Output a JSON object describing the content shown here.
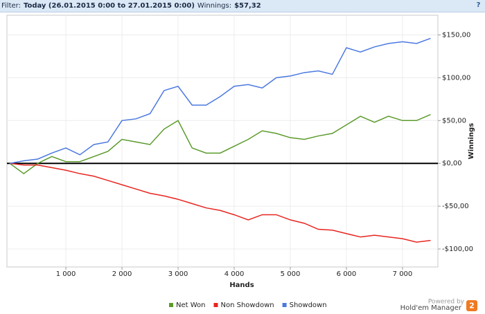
{
  "header": {
    "filter_label": "Filter:",
    "filter": "Today (26.01.2015 0:00 to 27.01.2015 0:00)",
    "winnings_label": "Winnings:",
    "winnings": "$57,32",
    "help": "?"
  },
  "branding": {
    "powered_by": "Powered by",
    "product": "Hold'em Manager",
    "badge": "2"
  },
  "chart_data": {
    "type": "line",
    "x_label": "Hands",
    "y_label": "Winnings",
    "x": [
      0,
      250,
      500,
      750,
      1000,
      1250,
      1500,
      1750,
      2000,
      2250,
      2500,
      2750,
      3000,
      3250,
      3500,
      3750,
      4000,
      4250,
      4500,
      4750,
      5000,
      5250,
      5500,
      5750,
      6000,
      6250,
      6500,
      6750,
      7000,
      7250,
      7500
    ],
    "series": [
      {
        "name": "Net Won",
        "color": "#5a9a2a",
        "values": [
          0,
          -12,
          0,
          8,
          2,
          2,
          8,
          14,
          28,
          25,
          22,
          40,
          50,
          18,
          12,
          12,
          20,
          28,
          38,
          35,
          30,
          28,
          32,
          35,
          45,
          55,
          48,
          55,
          50,
          50,
          57
        ]
      },
      {
        "name": "Non Showdown",
        "color": "#e8241e",
        "values": [
          0,
          -2,
          -2,
          -5,
          -8,
          -12,
          -15,
          -20,
          -25,
          -30,
          -35,
          -38,
          -42,
          -47,
          -52,
          -55,
          -60,
          -66,
          -60,
          -60,
          -66,
          -70,
          -77,
          -78,
          -82,
          -86,
          -84,
          -86,
          -88,
          -92,
          -90
        ]
      },
      {
        "name": "Showdown",
        "color": "#4a78e0",
        "values": [
          0,
          3,
          5,
          12,
          18,
          10,
          22,
          25,
          50,
          52,
          58,
          85,
          90,
          68,
          68,
          78,
          90,
          92,
          88,
          100,
          102,
          106,
          108,
          104,
          135,
          130,
          136,
          140,
          142,
          140,
          146
        ]
      }
    ],
    "xlim": [
      -50,
      7630
    ],
    "ylim": [
      -121,
      173
    ],
    "xticks": [
      {
        "value": 1000,
        "label": "1 000"
      },
      {
        "value": 2000,
        "label": "2 000"
      },
      {
        "value": 3000,
        "label": "3 000"
      },
      {
        "value": 4000,
        "label": "4 000"
      },
      {
        "value": 5000,
        "label": "5 000"
      },
      {
        "value": 6000,
        "label": "6 000"
      },
      {
        "value": 7000,
        "label": "7 000"
      }
    ],
    "yticks": [
      {
        "value": -100,
        "label": "-$100,00"
      },
      {
        "value": -50,
        "label": "-$50,00"
      },
      {
        "value": 0,
        "label": "$0,00"
      },
      {
        "value": 50,
        "label": "$50,00"
      },
      {
        "value": 100,
        "label": "$100,00"
      },
      {
        "value": 150,
        "label": "$150,00"
      }
    ],
    "grid": true,
    "legend": "bottom"
  }
}
